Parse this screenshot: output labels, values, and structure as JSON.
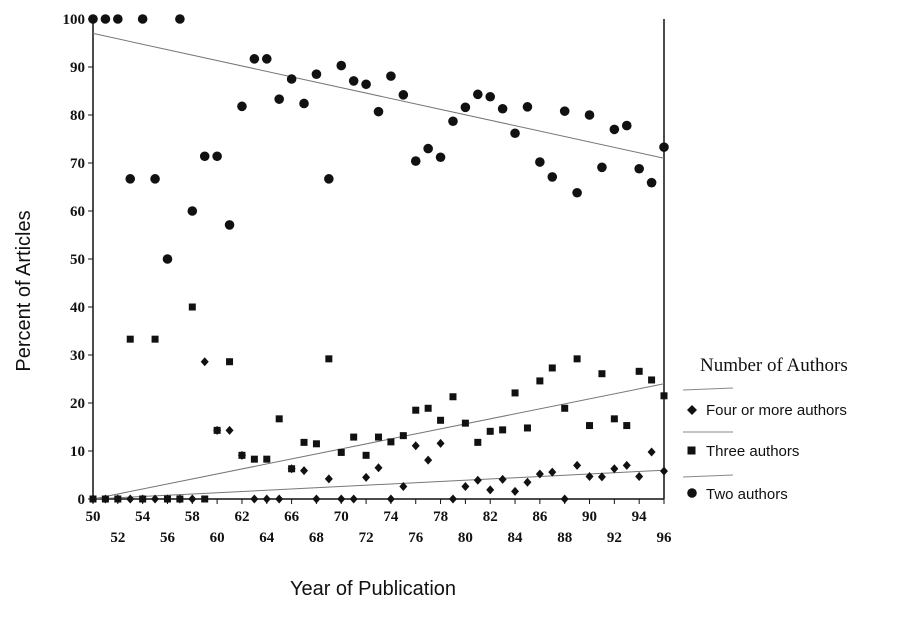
{
  "chart_data": {
    "type": "scatter",
    "xlabel": "Year of Publication",
    "ylabel": "Percent of Articles",
    "xlim": [
      50,
      96
    ],
    "ylim": [
      0,
      100
    ],
    "x_ticks": [
      "50",
      "52",
      "54",
      "56",
      "58",
      "60",
      "62",
      "64",
      "66",
      "68",
      "70",
      "72",
      "74",
      "76",
      "78",
      "80",
      "82",
      "84",
      "86",
      "88",
      "90",
      "92",
      "94",
      "96"
    ],
    "y_ticks": [
      "0",
      "10",
      "20",
      "30",
      "40",
      "50",
      "60",
      "70",
      "80",
      "90",
      "100"
    ],
    "legend": {
      "title": "Number of Authors",
      "placement": "right",
      "entries": [
        "Four or more authors",
        "Three authors",
        "Two authors"
      ]
    },
    "series": [
      {
        "name": "Two authors",
        "marker": "circle",
        "x": [
          50,
          51,
          52,
          53,
          54,
          55,
          56,
          57,
          58,
          59,
          60,
          61,
          62,
          63,
          64,
          65,
          66,
          67,
          68,
          69,
          70,
          71,
          72,
          73,
          74,
          75,
          76,
          77,
          78,
          79,
          80,
          81,
          82,
          83,
          84,
          85,
          86,
          87,
          88,
          89,
          90,
          91,
          92,
          93,
          94,
          95,
          96
        ],
        "y": [
          100,
          100,
          100,
          66.7,
          100,
          66.7,
          50,
          100,
          60,
          71.4,
          71.4,
          57.1,
          81.8,
          91.7,
          91.7,
          83.3,
          87.5,
          82.4,
          88.5,
          66.7,
          90.3,
          87.1,
          86.4,
          80.7,
          88.1,
          84.2,
          70.4,
          73,
          71.2,
          78.7,
          81.6,
          84.3,
          83.8,
          81.3,
          76.2,
          81.7,
          70.2,
          67.1,
          80.8,
          63.8,
          80,
          69.1,
          77,
          77.8,
          68.8,
          65.9,
          73.3
        ],
        "trend": [
          97,
          71
        ]
      },
      {
        "name": "Three authors",
        "marker": "square",
        "x": [
          50,
          51,
          52,
          53,
          54,
          55,
          56,
          57,
          58,
          59,
          60,
          61,
          62,
          63,
          64,
          65,
          66,
          67,
          68,
          69,
          70,
          71,
          72,
          73,
          74,
          75,
          76,
          77,
          78,
          79,
          80,
          81,
          82,
          83,
          84,
          85,
          86,
          87,
          88,
          89,
          90,
          91,
          92,
          93,
          94,
          95,
          96
        ],
        "y": [
          0,
          0,
          0,
          33.3,
          0,
          33.3,
          0,
          0,
          40,
          0,
          14.3,
          28.6,
          9.1,
          8.3,
          8.3,
          16.7,
          6.3,
          11.8,
          11.5,
          29.2,
          9.7,
          12.9,
          9.1,
          12.9,
          11.9,
          13.2,
          18.5,
          18.9,
          16.4,
          21.3,
          15.8,
          11.8,
          14.1,
          14.4,
          22.1,
          14.8,
          24.6,
          27.3,
          18.9,
          29.2,
          15.3,
          26.1,
          16.7,
          15.3,
          26.6,
          24.8,
          21.5
        ],
        "trend": [
          0,
          24
        ]
      },
      {
        "name": "Four or more authors",
        "marker": "diamond",
        "x": [
          50,
          51,
          52,
          53,
          54,
          55,
          56,
          57,
          58,
          59,
          60,
          61,
          62,
          63,
          64,
          65,
          66,
          67,
          68,
          69,
          70,
          71,
          72,
          73,
          74,
          75,
          76,
          77,
          78,
          79,
          80,
          81,
          82,
          83,
          84,
          85,
          86,
          87,
          88,
          89,
          90,
          91,
          92,
          93,
          94,
          95,
          96
        ],
        "y": [
          0,
          0,
          0,
          0,
          0,
          0,
          0,
          0,
          0,
          28.6,
          14.3,
          14.3,
          9.1,
          0,
          0,
          0,
          6.3,
          5.9,
          0,
          4.2,
          0,
          0,
          4.5,
          6.5,
          0,
          2.6,
          11.1,
          8.1,
          11.6,
          0,
          2.6,
          3.9,
          1.9,
          4.1,
          1.6,
          3.5,
          5.2,
          5.6,
          0,
          7,
          4.7,
          4.6,
          6.3,
          7,
          4.7,
          9.8,
          5.8
        ],
        "trend": [
          0,
          6
        ]
      }
    ]
  }
}
